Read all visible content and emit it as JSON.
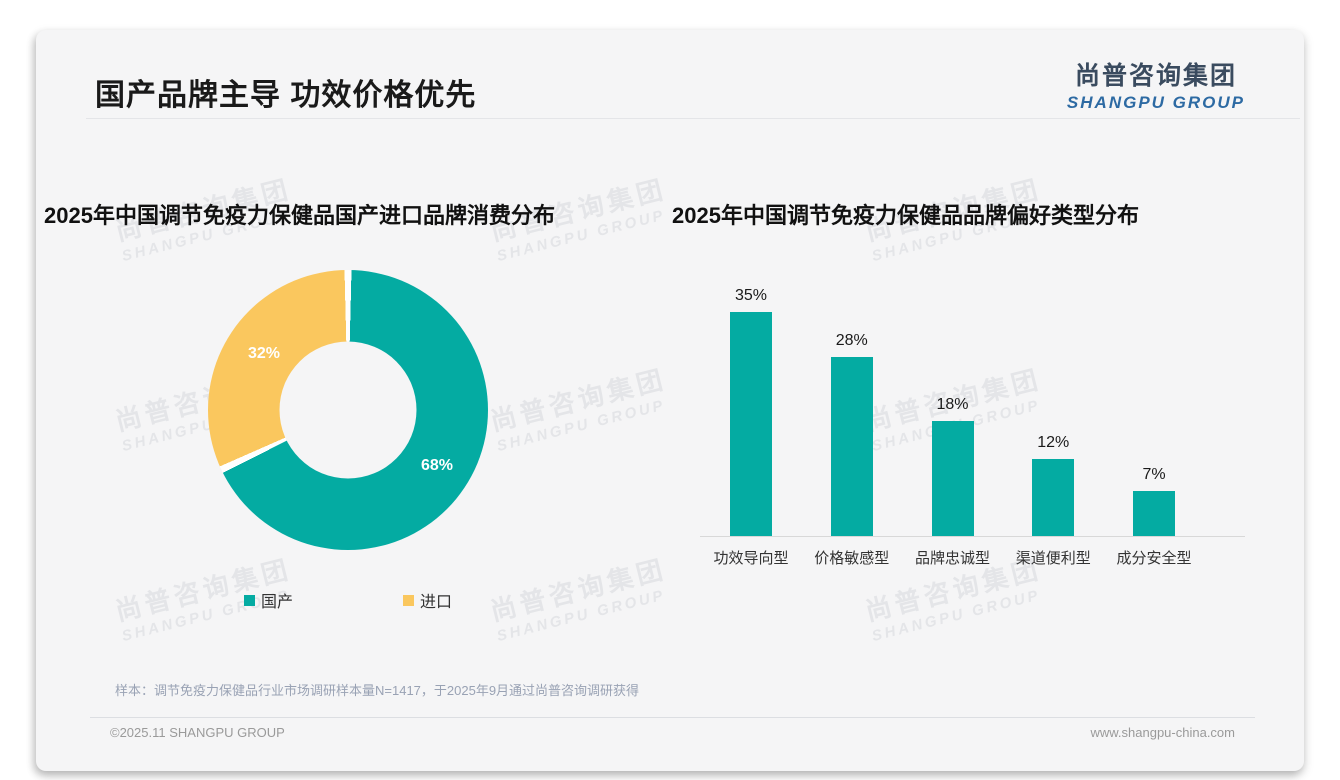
{
  "page": {
    "title": "国产品牌主导 功效价格优先",
    "logo": {
      "cn": "尚普咨询集团",
      "en": "SHANGPU GROUP"
    },
    "watermark": {
      "line1": "尚普咨询集团",
      "line2": "SHANGPU GROUP"
    },
    "footnote": "样本：调节免疫力保健品行业市场调研样本量N=1417，于2025年9月通过尚普咨询调研获得",
    "footer": {
      "left": "©2025.11 SHANGPU GROUP",
      "right": "www.shangpu-china.com"
    }
  },
  "colors": {
    "teal": "#04aba2",
    "yellow": "#fac75e",
    "title_text": "#1a1a1a",
    "logo_cn": "#3a4b5f",
    "logo_en": "#2d6aa3"
  },
  "chart_data": [
    {
      "type": "pie",
      "donut": true,
      "title": "2025年中国调节免疫力保健品国产进口品牌消费分布",
      "labels": [
        "国产",
        "进口"
      ],
      "values": [
        68,
        32
      ],
      "value_labels": [
        "68%",
        "32%"
      ],
      "colors": [
        "#04aba2",
        "#fac75e"
      ],
      "start_angle_deg": 0,
      "direction": "clockwise",
      "legend_position": "bottom"
    },
    {
      "type": "bar",
      "title": "2025年中国调节免疫力保健品品牌偏好类型分布",
      "categories": [
        "功效导向型",
        "价格敏感型",
        "品牌忠诚型",
        "渠道便利型",
        "成分安全型"
      ],
      "values": [
        35,
        28,
        18,
        12,
        7
      ],
      "value_labels": [
        "35%",
        "28%",
        "18%",
        "12%",
        "7%"
      ],
      "bar_color": "#04aba2",
      "ylim": [
        0,
        40
      ],
      "grid": false,
      "axis_line_color": "#d8d8d8"
    }
  ]
}
